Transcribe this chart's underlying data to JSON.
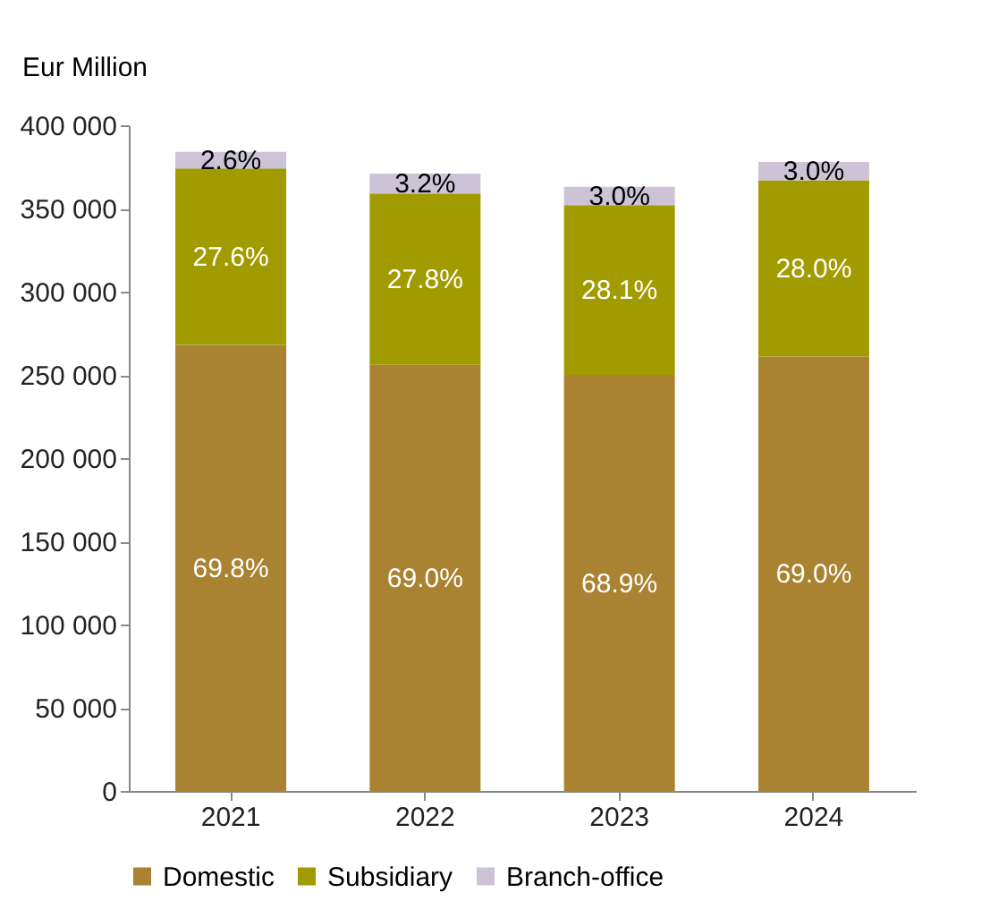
{
  "chart_data": {
    "type": "bar",
    "stacked": true,
    "ylabel": "Eur Million",
    "categories": [
      "2021",
      "2022",
      "2023",
      "2024"
    ],
    "series": [
      {
        "name": "Domestic",
        "color": "#a98232",
        "values": [
          268000,
          256000,
          250000,
          261000
        ]
      },
      {
        "name": "Subsidiary",
        "color": "#a29b00",
        "values": [
          106000,
          103000,
          102000,
          106000
        ]
      },
      {
        "name": "Branch-office",
        "color": "#ccc4d6",
        "values": [
          10000,
          12000,
          11000,
          11000
        ]
      }
    ],
    "annotations": [
      "69.8%",
      "69.0%",
      "68.9%",
      "69.0%",
      "27.6%",
      "27.8%",
      "28.1%",
      "28.0%",
      "2.6%",
      "3.2%",
      "3.0%",
      "3.0%"
    ],
    "ylim": [
      0,
      400000
    ],
    "yticks": [
      {
        "value": 0,
        "label": "0"
      },
      {
        "value": 50000,
        "label": "50 000"
      },
      {
        "value": 100000,
        "label": "100 000"
      },
      {
        "value": 150000,
        "label": "150 000"
      },
      {
        "value": 200000,
        "label": "200 000"
      },
      {
        "value": 250000,
        "label": "250 000"
      },
      {
        "value": 300000,
        "label": "300 000"
      },
      {
        "value": 350000,
        "label": "350 000"
      },
      {
        "value": 400000,
        "label": "400 000"
      }
    ],
    "grid": false,
    "legend": "bottom"
  }
}
